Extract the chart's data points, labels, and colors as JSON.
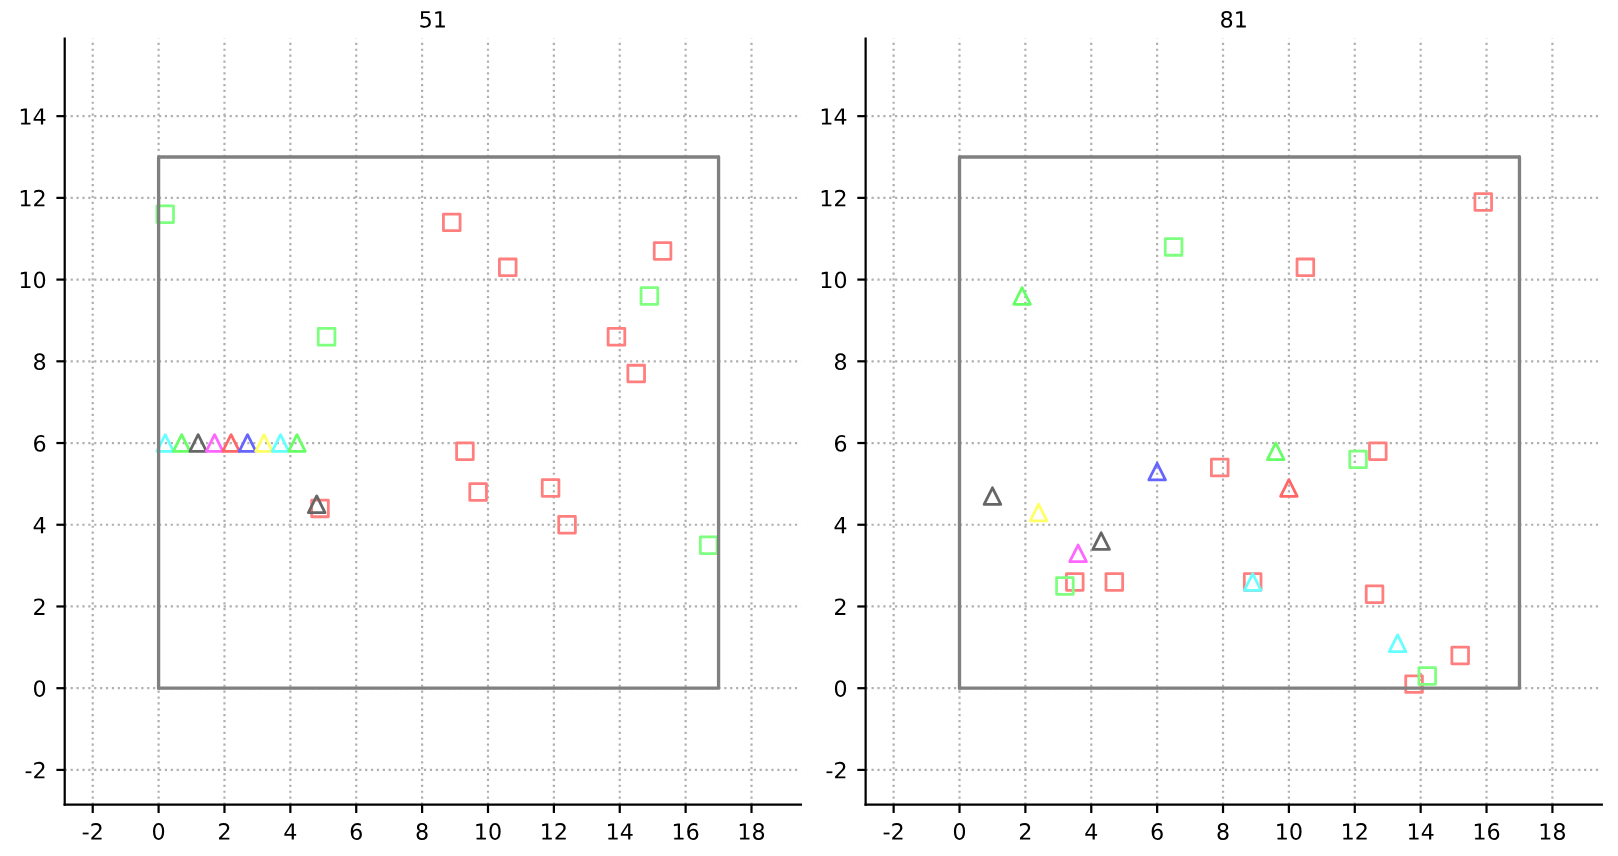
{
  "chart_data": [
    {
      "type": "scatter",
      "title": "51",
      "xlim": [
        -2.85,
        19.5
      ],
      "ylim": [
        -2.85,
        15.9
      ],
      "xticks": [
        -2,
        0,
        2,
        4,
        6,
        8,
        10,
        12,
        14,
        16,
        18
      ],
      "yticks": [
        -2,
        0,
        2,
        4,
        6,
        8,
        10,
        12,
        14
      ],
      "grid": true,
      "legend": false,
      "series": [
        {
          "type": "line",
          "marker": "none",
          "color": "#808080",
          "x": [
            0,
            17,
            17
          ],
          "values": [
            0,
            0,
            13
          ]
        },
        {
          "type": "line",
          "marker": "none",
          "color": "#808080",
          "x": [
            17,
            0,
            0
          ],
          "values": [
            13,
            13,
            0
          ]
        },
        {
          "type": "scatter",
          "marker": "square",
          "color": "#ff7f7f",
          "x": [
            8.9,
            10.6,
            15.3,
            13.9,
            14.5,
            9.3,
            9.7,
            11.9,
            12.4,
            4.9
          ],
          "values": [
            11.4,
            10.3,
            10.7,
            8.6,
            7.7,
            5.8,
            4.8,
            4.9,
            4.0,
            4.4
          ]
        },
        {
          "type": "scatter",
          "marker": "square",
          "color": "#7fff7f",
          "x": [
            0.2,
            5.1,
            14.9,
            16.7
          ],
          "values": [
            11.6,
            8.6,
            9.6,
            3.5
          ]
        },
        {
          "type": "scatter",
          "marker": "triangle",
          "colors": [
            "#66ffff",
            "#66ff66",
            "#666666",
            "#ff66ff",
            "#ff6666",
            "#6666ff",
            "#ffff66",
            "#66ffff",
            "#66ff66",
            "#666666"
          ],
          "x": [
            0.2,
            0.7,
            1.2,
            1.7,
            2.2,
            2.7,
            3.2,
            3.7,
            4.2,
            4.8
          ],
          "values": [
            6.0,
            6.0,
            6.0,
            6.0,
            6.0,
            6.0,
            6.0,
            6.0,
            6.0,
            4.5
          ]
        }
      ]
    },
    {
      "type": "scatter",
      "title": "81",
      "xlim": [
        -2.85,
        19.5
      ],
      "ylim": [
        -2.85,
        15.9
      ],
      "xticks": [
        -2,
        0,
        2,
        4,
        6,
        8,
        10,
        12,
        14,
        16,
        18
      ],
      "yticks": [
        -2,
        0,
        2,
        4,
        6,
        8,
        10,
        12,
        14
      ],
      "grid": true,
      "legend": false,
      "series": [
        {
          "type": "line",
          "marker": "none",
          "color": "#808080",
          "x": [
            0,
            17,
            17
          ],
          "values": [
            0,
            0,
            13
          ]
        },
        {
          "type": "line",
          "marker": "none",
          "color": "#808080",
          "x": [
            17,
            0,
            0
          ],
          "values": [
            13,
            13,
            0
          ]
        },
        {
          "type": "scatter",
          "marker": "square",
          "color": "#ff7f7f",
          "x": [
            15.9,
            10.5,
            7.9,
            12.7,
            3.5,
            4.7,
            8.9,
            12.6,
            15.2,
            13.8
          ],
          "values": [
            11.9,
            10.3,
            5.4,
            5.8,
            2.6,
            2.6,
            2.6,
            2.3,
            0.8,
            0.1
          ]
        },
        {
          "type": "scatter",
          "marker": "square",
          "color": "#7fff7f",
          "x": [
            6.5,
            12.1,
            3.2,
            14.2
          ],
          "values": [
            10.8,
            5.6,
            2.5,
            0.3
          ]
        },
        {
          "type": "scatter",
          "marker": "triangle",
          "colors": [
            "#66ff66",
            "#6666ff",
            "#66ff66",
            "#ff6666",
            "#666666",
            "#ffff66",
            "#666666",
            "#ff66ff",
            "#66ffff",
            "#66ffff"
          ],
          "x": [
            1.9,
            6.0,
            9.6,
            10.0,
            1.0,
            2.4,
            4.3,
            3.6,
            8.9,
            13.3
          ],
          "values": [
            9.6,
            5.3,
            5.8,
            4.9,
            4.7,
            4.3,
            3.6,
            3.3,
            2.6,
            1.1
          ]
        }
      ]
    }
  ]
}
